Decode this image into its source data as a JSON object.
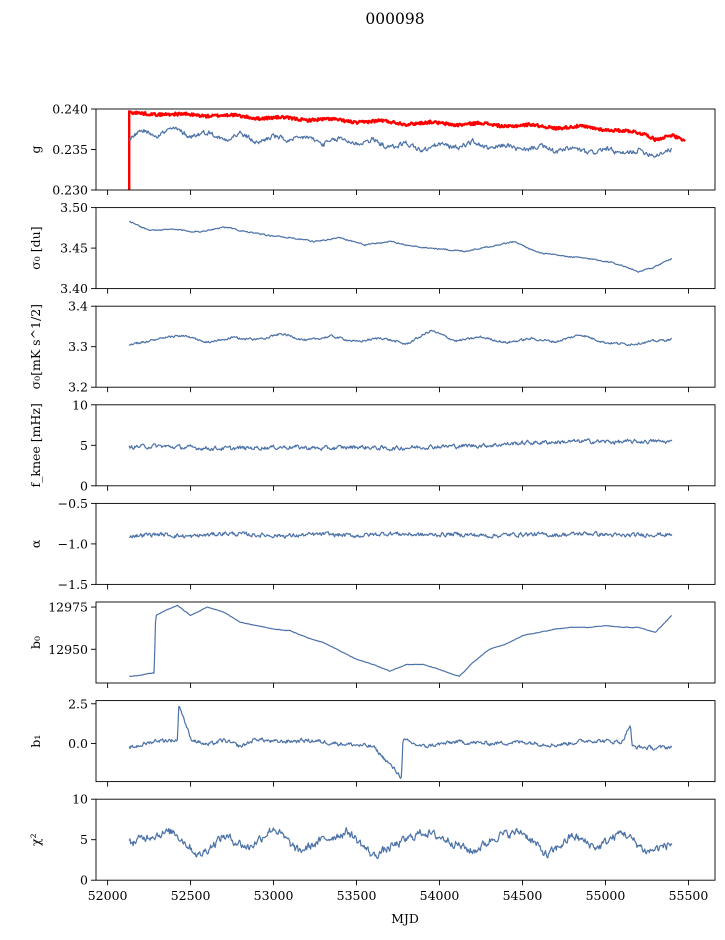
{
  "figure": {
    "title": "000098",
    "xlabel": "MJD",
    "x_ticks": [
      "52000",
      "52500",
      "53000",
      "53500",
      "54000",
      "54500",
      "55000",
      "55500"
    ],
    "colors": {
      "series": "#4C72A8",
      "reference": "#FF0000",
      "frame": "#000000"
    }
  },
  "chart_data": [
    {
      "type": "line",
      "ylabel": "g",
      "xlim": [
        51930,
        55660
      ],
      "ylim": [
        0.23,
        0.24
      ],
      "y_ticks": [
        "0.230",
        "0.235",
        "0.240"
      ],
      "y_tick_values": [
        0.23,
        0.235,
        0.24
      ],
      "grid": false,
      "series": [
        {
          "color": "#FF0000",
          "x": [
            52130,
            52300,
            52450,
            52600,
            52750,
            52900,
            53050,
            53200,
            53350,
            53500,
            53650,
            53800,
            53950,
            54100,
            54250,
            54400,
            54550,
            54700,
            54850,
            55000,
            55150,
            55250,
            55300,
            55400,
            55480
          ],
          "y": [
            0.2396,
            0.2393,
            0.2394,
            0.2391,
            0.2393,
            0.2388,
            0.239,
            0.2386,
            0.2388,
            0.2383,
            0.2386,
            0.2381,
            0.2384,
            0.238,
            0.2383,
            0.2378,
            0.2381,
            0.2376,
            0.2379,
            0.2374,
            0.2373,
            0.2368,
            0.2362,
            0.2368,
            0.236
          ]
        },
        {
          "color": "#4C72A8",
          "x": [
            52130,
            52200,
            52300,
            52400,
            52500,
            52600,
            52700,
            52800,
            52900,
            53000,
            53100,
            53200,
            53300,
            53400,
            53500,
            53600,
            53700,
            53800,
            53900,
            54000,
            54100,
            54200,
            54300,
            54400,
            54500,
            54600,
            54700,
            54800,
            54900,
            55000,
            55100,
            55200,
            55300,
            55400
          ],
          "y": [
            0.2363,
            0.2374,
            0.2368,
            0.2376,
            0.2366,
            0.2372,
            0.2362,
            0.237,
            0.2358,
            0.2367,
            0.236,
            0.2366,
            0.2356,
            0.2364,
            0.2357,
            0.2362,
            0.2352,
            0.2358,
            0.2348,
            0.2357,
            0.2352,
            0.236,
            0.235,
            0.2356,
            0.2348,
            0.2355,
            0.2347,
            0.2352,
            0.2345,
            0.2351,
            0.2344,
            0.2349,
            0.2343,
            0.2351
          ]
        }
      ]
    },
    {
      "type": "line",
      "ylabel": "σ₀ [du]",
      "xlim": [
        51930,
        55660
      ],
      "ylim": [
        3.4,
        3.5
      ],
      "y_ticks": [
        "3.40",
        "3.45",
        "3.50"
      ],
      "y_tick_values": [
        3.4,
        3.45,
        3.5
      ],
      "grid": false,
      "series": [
        {
          "color": "#4C72A8",
          "x": [
            52130,
            52250,
            52400,
            52550,
            52700,
            52800,
            52950,
            53100,
            53250,
            53400,
            53550,
            53700,
            53850,
            54000,
            54150,
            54300,
            54450,
            54600,
            54750,
            54900,
            55050,
            55200,
            55300,
            55400
          ],
          "y": [
            3.483,
            3.472,
            3.473,
            3.47,
            3.476,
            3.472,
            3.466,
            3.463,
            3.458,
            3.463,
            3.454,
            3.458,
            3.452,
            3.449,
            3.446,
            3.452,
            3.458,
            3.444,
            3.44,
            3.437,
            3.432,
            3.421,
            3.427,
            3.437
          ]
        }
      ]
    },
    {
      "type": "line",
      "ylabel": "σ₀[mK s^1/2]",
      "xlim": [
        51930,
        55660
      ],
      "ylim": [
        3.2,
        3.4
      ],
      "y_ticks": [
        "3.2",
        "3.3",
        "3.4"
      ],
      "y_tick_values": [
        3.2,
        3.3,
        3.4
      ],
      "grid": false,
      "series": [
        {
          "color": "#4C72A8",
          "x": [
            52130,
            52300,
            52450,
            52600,
            52750,
            52900,
            53050,
            53200,
            53350,
            53500,
            53650,
            53800,
            53950,
            54100,
            54250,
            54400,
            54550,
            54700,
            54850,
            55000,
            55150,
            55300,
            55400
          ],
          "y": [
            3.305,
            3.318,
            3.328,
            3.31,
            3.322,
            3.318,
            3.332,
            3.315,
            3.326,
            3.312,
            3.322,
            3.306,
            3.34,
            3.314,
            3.324,
            3.31,
            3.32,
            3.312,
            3.33,
            3.31,
            3.306,
            3.314,
            3.318
          ]
        }
      ]
    },
    {
      "type": "line",
      "ylabel": "f_knee [mHz]",
      "xlim": [
        51930,
        55660
      ],
      "ylim": [
        0,
        10
      ],
      "y_ticks": [
        "0",
        "5",
        "10"
      ],
      "y_tick_values": [
        0,
        5,
        10
      ],
      "grid": false,
      "series": [
        {
          "color": "#4C72A8",
          "x": [
            52130,
            52300,
            52500,
            52700,
            52900,
            53100,
            53300,
            53500,
            53700,
            53900,
            54100,
            54300,
            54500,
            54700,
            54900,
            55100,
            55300,
            55400
          ],
          "y": [
            4.8,
            4.9,
            4.7,
            4.6,
            4.7,
            4.8,
            4.6,
            4.8,
            4.6,
            4.8,
            4.9,
            5.0,
            5.3,
            5.4,
            5.5,
            5.4,
            5.5,
            5.4
          ]
        }
      ]
    },
    {
      "type": "line",
      "ylabel": "α",
      "xlim": [
        51930,
        55660
      ],
      "ylim": [
        -1.5,
        -0.5
      ],
      "y_ticks": [
        "−1.5",
        "−1.0",
        "−0.5"
      ],
      "y_tick_values": [
        -1.5,
        -1.0,
        -0.5
      ],
      "grid": false,
      "series": [
        {
          "color": "#4C72A8",
          "x": [
            52130,
            52300,
            52500,
            52700,
            52900,
            53100,
            53300,
            53500,
            53700,
            53900,
            54100,
            54300,
            54500,
            54700,
            54900,
            55100,
            55300,
            55400
          ],
          "y": [
            -0.9,
            -0.88,
            -0.91,
            -0.87,
            -0.89,
            -0.9,
            -0.88,
            -0.9,
            -0.87,
            -0.89,
            -0.88,
            -0.9,
            -0.88,
            -0.89,
            -0.87,
            -0.9,
            -0.88,
            -0.89
          ]
        }
      ]
    },
    {
      "type": "line",
      "ylabel": "b₀",
      "xlim": [
        51930,
        55660
      ],
      "ylim": [
        12930,
        12978
      ],
      "y_ticks": [
        "12950",
        "12975"
      ],
      "y_tick_values": [
        12950,
        12975
      ],
      "grid": false,
      "series": [
        {
          "color": "#4C72A8",
          "x": [
            52130,
            52150,
            52280,
            52290,
            52350,
            52420,
            52500,
            52600,
            52700,
            52800,
            52900,
            53000,
            53100,
            53200,
            53300,
            53400,
            53500,
            53600,
            53700,
            53800,
            53900,
            54000,
            54080,
            54120,
            54200,
            54300,
            54400,
            54500,
            54600,
            54700,
            54800,
            54900,
            55000,
            55100,
            55200,
            55300,
            55400
          ],
          "y": [
            12934,
            12934,
            12936,
            12970,
            12973,
            12976,
            12970,
            12975,
            12972,
            12966,
            12964,
            12962,
            12961,
            12957,
            12954,
            12949,
            12944,
            12941,
            12937,
            12941,
            12941,
            12938,
            12935,
            12934,
            12942,
            12950,
            12953,
            12958,
            12960,
            12962,
            12963,
            12963,
            12964,
            12963,
            12963,
            12960,
            12970
          ]
        }
      ]
    },
    {
      "type": "line",
      "ylabel": "b₁",
      "xlim": [
        51930,
        55660
      ],
      "ylim": [
        -2.4,
        2.7
      ],
      "y_ticks": [
        "0.0",
        "2.5"
      ],
      "y_tick_values": [
        0.0,
        2.5
      ],
      "grid": false,
      "series": [
        {
          "color": "#4C72A8",
          "x": [
            52130,
            52300,
            52420,
            52430,
            52500,
            52600,
            52700,
            52800,
            52900,
            53000,
            53200,
            53400,
            53600,
            53770,
            53780,
            53900,
            54100,
            54300,
            54500,
            54700,
            54900,
            55100,
            55150,
            55160,
            55300,
            55400
          ],
          "y": [
            -0.3,
            0.2,
            0.2,
            2.5,
            0.3,
            -0.1,
            0.2,
            -0.2,
            0.3,
            0.1,
            0.2,
            0.0,
            -0.2,
            -2.1,
            0.2,
            -0.2,
            0.1,
            0.0,
            0.1,
            -0.1,
            0.2,
            0.1,
            1.2,
            -0.2,
            -0.3,
            -0.2
          ]
        }
      ]
    },
    {
      "type": "line",
      "ylabel": "χ²",
      "xlim": [
        51930,
        55660
      ],
      "ylim": [
        0,
        10
      ],
      "y_ticks": [
        "0",
        "5",
        "10"
      ],
      "y_tick_values": [
        0,
        5,
        10
      ],
      "grid": false,
      "series": [
        {
          "color": "#4C72A8",
          "x": [
            52130,
            52250,
            52400,
            52550,
            52700,
            52850,
            53000,
            53150,
            53300,
            53450,
            53600,
            53750,
            53900,
            54050,
            54200,
            54350,
            54500,
            54650,
            54800,
            54950,
            55100,
            55250,
            55400
          ],
          "y": [
            4.5,
            5.5,
            6.0,
            3.0,
            5.5,
            4.0,
            6.5,
            3.5,
            5.0,
            6.0,
            3.0,
            4.5,
            6.0,
            5.0,
            3.5,
            5.5,
            6.0,
            3.0,
            5.5,
            4.0,
            6.0,
            3.5,
            4.5
          ]
        }
      ]
    }
  ]
}
